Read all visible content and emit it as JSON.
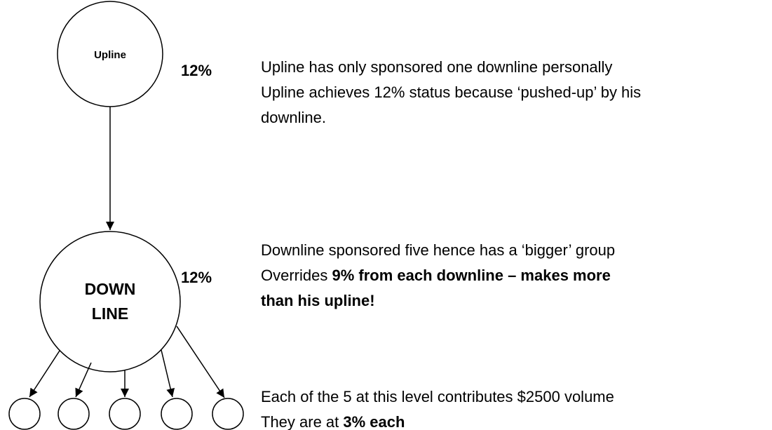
{
  "nodes": [
    {
      "label": [
        "Upline"
      ]
    },
    {
      "label": [
        "DOWN",
        "LINE"
      ]
    }
  ],
  "notes": [
    {
      "rate": "12%",
      "lines": [
        [
          {
            "text": "Upline has only sponsored one downline personally",
            "bold": false
          }
        ],
        [
          {
            "text": "Upline achieves 12% status because ‘pushed-up’ by his",
            "bold": false
          }
        ],
        [
          {
            "text": "downline.",
            "bold": false
          }
        ]
      ]
    },
    {
      "rate": "12%",
      "lines": [
        [
          {
            "text": "Downline sponsored five hence has a ‘bigger’ group",
            "bold": false
          }
        ],
        [
          {
            "text": "Overrides ",
            "bold": false
          },
          {
            "text": "9% from each downline – makes more",
            "bold": true
          }
        ],
        [
          {
            "text": "than his upline!",
            "bold": true
          }
        ]
      ]
    },
    {
      "lines": [
        [
          {
            "text": "Each of the 5 at this level contributes $2500 volume",
            "bold": false
          }
        ],
        [
          {
            "text": "They are at ",
            "bold": false
          },
          {
            "text": "3% each",
            "bold": true
          }
        ]
      ]
    }
  ]
}
